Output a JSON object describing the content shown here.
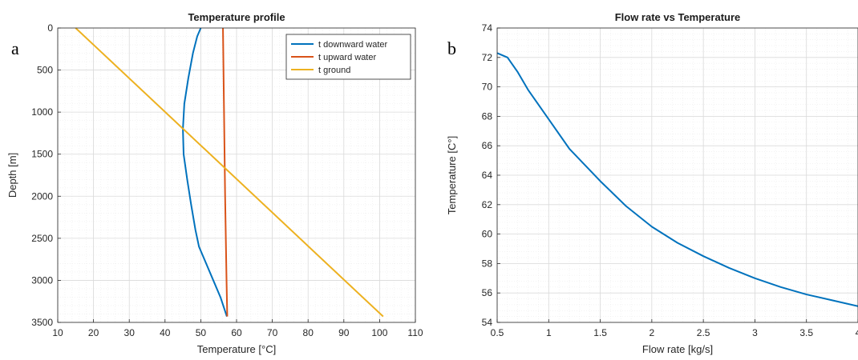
{
  "panel_labels": [
    "a",
    "b"
  ],
  "colors": {
    "downward": "#0072BD",
    "upward": "#D95319",
    "ground": "#EDB120",
    "grid_major": "#d9d9d9",
    "grid_minor": "#ececec",
    "axis": "#262626"
  },
  "chart_data": [
    {
      "type": "line",
      "title": "Temperature profile",
      "xlabel": "Temperature [°C]",
      "ylabel": "Depth [m]",
      "xlim": [
        10,
        110
      ],
      "ylim": [
        0,
        3500
      ],
      "y_reversed": true,
      "grid": "on (major + minor)",
      "legend_location": "top-right",
      "xticks": [
        "10",
        "20",
        "30",
        "40",
        "50",
        "60",
        "70",
        "80",
        "90",
        "100",
        "110"
      ],
      "yticks": [
        "0",
        "500",
        "1000",
        "1500",
        "2000",
        "2500",
        "3000",
        "3500"
      ],
      "series": [
        {
          "name": "t downward water",
          "color": "#0072BD",
          "points": [
            [
              50,
              0
            ],
            [
              49,
              100
            ],
            [
              47.8,
              300
            ],
            [
              46.5,
              600
            ],
            [
              45.4,
              900
            ],
            [
              45,
              1200
            ],
            [
              45.2,
              1500
            ],
            [
              46.2,
              1800
            ],
            [
              47.3,
              2100
            ],
            [
              48.5,
              2400
            ],
            [
              49.5,
              2600
            ],
            [
              51.5,
              2800
            ],
            [
              53.5,
              3000
            ],
            [
              55.5,
              3200
            ],
            [
              57.3,
              3430
            ]
          ]
        },
        {
          "name": "t upward water",
          "color": "#D95319",
          "points": [
            [
              56.2,
              0
            ],
            [
              56.5,
              1000
            ],
            [
              56.8,
              2000
            ],
            [
              57.2,
              3000
            ],
            [
              57.4,
              3430
            ]
          ]
        },
        {
          "name": "t ground",
          "color": "#EDB120",
          "points": [
            [
              15,
              0
            ],
            [
              101,
              3430
            ]
          ]
        }
      ]
    },
    {
      "type": "line",
      "title": "Flow rate vs Temperature",
      "xlabel": "Flow rate [kg/s]",
      "ylabel": "Temperature [C°]",
      "xlim": [
        0.5,
        4
      ],
      "ylim": [
        54,
        74
      ],
      "grid": "on (major + minor)",
      "xticks": [
        "0.5",
        "1",
        "1.5",
        "2",
        "2.5",
        "3",
        "3.5",
        "4"
      ],
      "yticks": [
        "54",
        "56",
        "58",
        "60",
        "62",
        "64",
        "66",
        "68",
        "70",
        "72",
        "74"
      ],
      "series": [
        {
          "color": "#0072BD",
          "points": [
            [
              0.5,
              72.3
            ],
            [
              0.6,
              72.0
            ],
            [
              0.7,
              71.0
            ],
            [
              0.8,
              69.8
            ],
            [
              1.0,
              67.8
            ],
            [
              1.2,
              65.8
            ],
            [
              1.5,
              63.6
            ],
            [
              1.75,
              61.9
            ],
            [
              2.0,
              60.5
            ],
            [
              2.25,
              59.4
            ],
            [
              2.5,
              58.5
            ],
            [
              2.75,
              57.7
            ],
            [
              3.0,
              57.0
            ],
            [
              3.25,
              56.4
            ],
            [
              3.5,
              55.9
            ],
            [
              3.75,
              55.5
            ],
            [
              4.0,
              55.1
            ]
          ]
        }
      ]
    }
  ]
}
